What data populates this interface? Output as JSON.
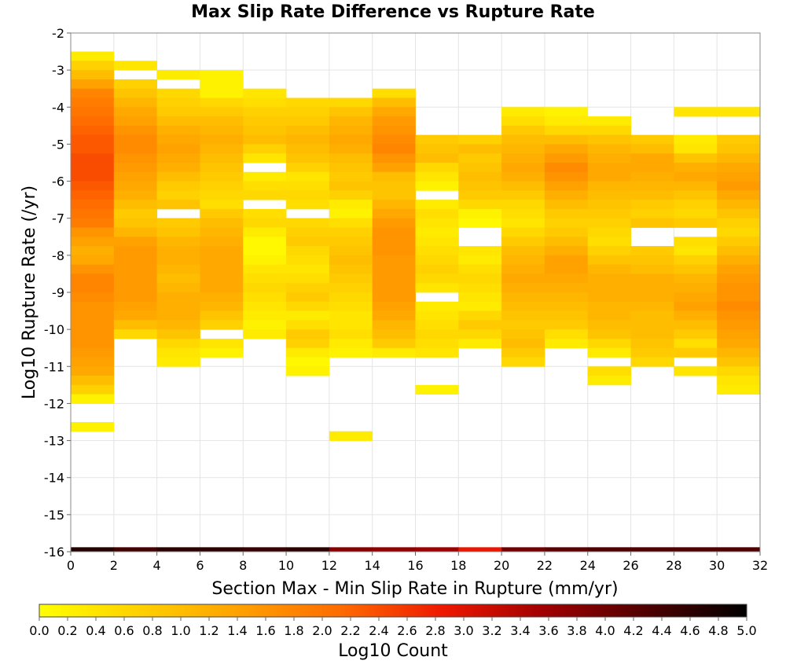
{
  "chart_data": {
    "type": "heatmap",
    "title": "Max Slip Rate Difference vs Rupture Rate",
    "xlabel": "Section Max - Min Slip Rate in Rupture (mm/yr)",
    "ylabel": "Log10 Rupture Rate (/yr)",
    "colorbar_label": "Log10 Count",
    "xlim": [
      0,
      32
    ],
    "ylim": [
      -16,
      -2
    ],
    "x_ticks": [
      "0",
      "2",
      "4",
      "6",
      "8",
      "10",
      "12",
      "14",
      "16",
      "18",
      "20",
      "22",
      "24",
      "26",
      "28",
      "30",
      "32"
    ],
    "y_ticks": [
      "-2",
      "-3",
      "-4",
      "-5",
      "-6",
      "-7",
      "-8",
      "-9",
      "-10",
      "-11",
      "-12",
      "-13",
      "-14",
      "-15",
      "-16"
    ],
    "colorbar_ticks": [
      "0.0",
      "0.2",
      "0.4",
      "0.6",
      "0.8",
      "1.0",
      "1.2",
      "1.4",
      "1.6",
      "1.8",
      "2.0",
      "2.2",
      "2.4",
      "2.6",
      "2.8",
      "3.0",
      "3.2",
      "3.4",
      "3.6",
      "3.8",
      "4.0",
      "4.2",
      "4.4",
      "4.6",
      "4.8",
      "5.0"
    ],
    "color_scale": [
      "#ffff00",
      "#ffd000",
      "#ffa000",
      "#ff6a00",
      "#ee1800",
      "#a00000",
      "#500000",
      "#000000"
    ],
    "color_range": [
      0,
      5
    ],
    "cell_size": {
      "dx": 2,
      "dy": 0.25
    },
    "grid": true,
    "columns": [
      {
        "x0": 0,
        "y_top": -2.5,
        "values": [
          0.3,
          0.7,
          1.0,
          1.4,
          1.8,
          1.9,
          2.0,
          2.1,
          2.2,
          2.3,
          2.3,
          2.4,
          2.4,
          2.4,
          2.3,
          2.2,
          2.1,
          2.0,
          1.9,
          1.6,
          1.4,
          1.2,
          1.3,
          1.6,
          1.8,
          1.8,
          1.7,
          1.6,
          1.6,
          1.6,
          1.6,
          1.6,
          1.5,
          1.4,
          1.3,
          1.0,
          0.7,
          0.2,
          null,
          null,
          0.2
        ]
      },
      {
        "x0": 2,
        "y_top": -2.75,
        "values": [
          0.4,
          null,
          0.7,
          0.9,
          1.1,
          1.3,
          1.4,
          1.6,
          1.7,
          1.7,
          1.6,
          1.5,
          1.4,
          1.3,
          1.2,
          1.0,
          0.8,
          0.9,
          1.1,
          1.4,
          1.5,
          1.5,
          1.5,
          1.5,
          1.5,
          1.5,
          1.4,
          1.3,
          1.0,
          0.6
        ]
      },
      {
        "x0": 4,
        "y_top": -3.0,
        "values": [
          0.3,
          null,
          0.6,
          0.7,
          0.8,
          1.0,
          1.2,
          1.3,
          1.4,
          1.3,
          1.2,
          1.0,
          0.8,
          0.7,
          0.9,
          null,
          0.8,
          0.9,
          1.1,
          1.2,
          1.2,
          1.1,
          1.0,
          1.1,
          1.2,
          1.2,
          1.2,
          1.1,
          0.9,
          0.6,
          0.4,
          0.3
        ]
      },
      {
        "x0": 6,
        "y_top": -3.0,
        "values": [
          0.2,
          0.2,
          0.2,
          0.6,
          0.8,
          1.0,
          1.1,
          1.2,
          1.1,
          1.0,
          0.9,
          0.8,
          0.7,
          0.6,
          0.5,
          0.8,
          1.0,
          1.1,
          1.2,
          1.3,
          1.3,
          1.3,
          1.3,
          1.3,
          1.2,
          1.1,
          0.9,
          0.7,
          null,
          0.4,
          0.2
        ]
      },
      {
        "x0": 8,
        "y_top": -3.5,
        "values": [
          0.4,
          0.5,
          0.7,
          0.8,
          0.9,
          1.0,
          0.7,
          0.4,
          null,
          0.3,
          0.5,
          0.6,
          null,
          0.5,
          0.6,
          0.3,
          0.1,
          0.1,
          0.2,
          0.4,
          0.5,
          0.6,
          0.5,
          0.4,
          0.3,
          0.2,
          0.3
        ]
      },
      {
        "x0": 10,
        "y_top": -3.75,
        "values": [
          0.6,
          0.7,
          0.8,
          1.0,
          1.1,
          1.0,
          0.9,
          0.7,
          0.4,
          0.5,
          0.6,
          0.5,
          null,
          0.6,
          0.7,
          0.8,
          0.6,
          0.5,
          0.4,
          0.5,
          0.7,
          0.8,
          0.6,
          0.3,
          0.5,
          0.8,
          0.7,
          0.3,
          0.1,
          0.2
        ]
      },
      {
        "x0": 12,
        "y_top": -3.75,
        "values": [
          0.6,
          0.9,
          1.1,
          1.2,
          1.3,
          1.2,
          1.0,
          0.9,
          0.8,
          0.9,
          0.7,
          0.3,
          0.2,
          0.5,
          0.7,
          0.8,
          0.9,
          1.0,
          0.9,
          0.8,
          0.7,
          0.6,
          0.5,
          0.4,
          0.4,
          0.5,
          0.3,
          0.2,
          null,
          null,
          null,
          null,
          null,
          null,
          null,
          null,
          0.3
        ]
      },
      {
        "x0": 14,
        "y_top": -3.5,
        "values": [
          0.5,
          1.0,
          1.3,
          1.5,
          1.6,
          1.7,
          1.8,
          1.6,
          1.4,
          1.0,
          0.9,
          0.9,
          1.1,
          1.3,
          1.5,
          1.6,
          1.6,
          1.6,
          1.5,
          1.5,
          1.5,
          1.5,
          1.5,
          1.4,
          1.3,
          1.1,
          1.0,
          0.8,
          0.3
        ]
      },
      {
        "x0": 16,
        "y_top": -4.75,
        "values": [
          0.8,
          0.9,
          1.0,
          0.6,
          0.4,
          0.2,
          null,
          0.3,
          0.5,
          0.4,
          0.3,
          0.4,
          0.5,
          0.6,
          0.7,
          0.6,
          0.4,
          null,
          0.3,
          0.4,
          0.5,
          0.6,
          0.5,
          0.4,
          null,
          null,
          null,
          0.2
        ]
      },
      {
        "x0": 18,
        "y_top": -4.75,
        "values": [
          0.7,
          1.0,
          0.8,
          0.9,
          1.0,
          0.9,
          0.8,
          0.6,
          0.2,
          0.1,
          null,
          null,
          0.4,
          0.3,
          0.5,
          0.6,
          0.5,
          0.4,
          0.3,
          0.6,
          0.8,
          0.6,
          0.3
        ]
      },
      {
        "x0": 20,
        "y_top": -4.0,
        "values": [
          0.3,
          0.5,
          0.8,
          1.0,
          1.1,
          1.2,
          1.3,
          1.2,
          1.0,
          0.8,
          0.6,
          0.5,
          0.4,
          0.6,
          0.8,
          1.0,
          1.1,
          1.2,
          1.3,
          1.2,
          1.1,
          1.0,
          0.9,
          0.8,
          0.9,
          1.0,
          0.8,
          0.6
        ]
      },
      {
        "x0": 22,
        "y_top": -4.0,
        "values": [
          0.2,
          0.3,
          0.6,
          1.0,
          1.3,
          1.5,
          1.7,
          1.6,
          1.4,
          1.2,
          1.0,
          0.8,
          0.7,
          0.8,
          1.0,
          1.2,
          1.4,
          1.4,
          1.3,
          1.2,
          1.1,
          1.0,
          0.9,
          0.8,
          0.5,
          0.3
        ]
      },
      {
        "x0": 24,
        "y_top": -4.25,
        "values": [
          0.3,
          0.6,
          0.9,
          1.1,
          1.2,
          1.3,
          1.3,
          1.1,
          1.0,
          0.9,
          0.8,
          0.7,
          0.6,
          0.5,
          0.7,
          0.9,
          1.1,
          1.2,
          1.2,
          1.2,
          1.1,
          1.1,
          1.0,
          0.9,
          0.6,
          0.3,
          null,
          0.5,
          0.3
        ]
      },
      {
        "x0": 26,
        "y_top": -4.75,
        "values": [
          0.8,
          1.0,
          1.3,
          1.3,
          1.2,
          1.1,
          1.0,
          0.8,
          0.7,
          0.9,
          null,
          null,
          0.8,
          0.9,
          1.0,
          1.2,
          1.2,
          1.2,
          1.1,
          1.0,
          1.0,
          1.0,
          0.9,
          0.8,
          0.6
        ]
      },
      {
        "x0": 28,
        "y_top": -4.0,
        "values": [
          0.4,
          null,
          null,
          0.3,
          0.4,
          0.9,
          1.2,
          1.3,
          1.1,
          0.9,
          0.7,
          0.6,
          0.8,
          null,
          0.5,
          0.4,
          0.7,
          0.9,
          1.1,
          1.2,
          1.3,
          1.4,
          1.2,
          1.0,
          0.8,
          0.5,
          0.8,
          null,
          0.4
        ]
      },
      {
        "x0": 30,
        "y_top": -4.0,
        "values": [
          0.4,
          null,
          null,
          0.8,
          0.9,
          1.1,
          1.3,
          1.4,
          1.5,
          1.3,
          1.1,
          0.9,
          0.7,
          0.6,
          0.8,
          1.0,
          1.2,
          1.4,
          1.5,
          1.6,
          1.6,
          1.7,
          1.6,
          1.5,
          1.4,
          1.3,
          1.1,
          0.9,
          0.6,
          0.4,
          0.3
        ]
      }
    ],
    "bottom_row": {
      "y": -16,
      "values": [
        4.7,
        4.4,
        4.6,
        4.6,
        4.5,
        4.6,
        3.8,
        3.7,
        3.6,
        2.9,
        4.0,
        4.2,
        4.3,
        4.3,
        4.3,
        4.3
      ]
    }
  }
}
